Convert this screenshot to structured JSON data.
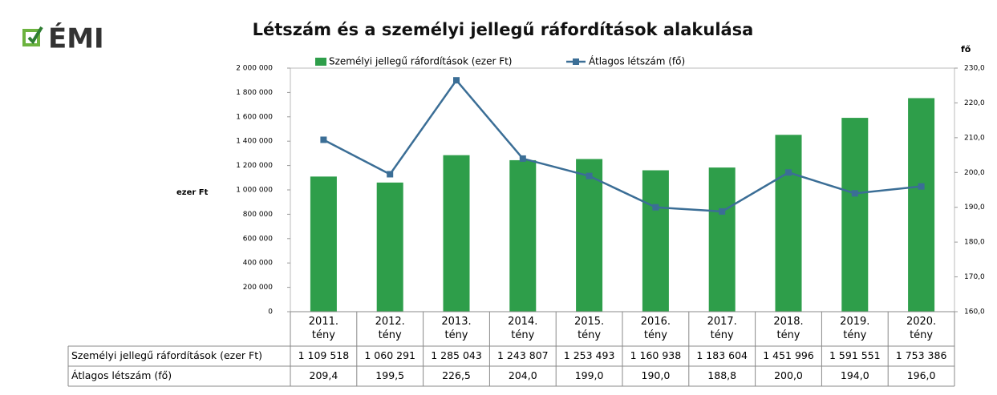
{
  "logo": "ÉMI",
  "chart_data": {
    "type": "bar-line",
    "title": "Létszám és a személyi jellegű ráfordítások alakulása",
    "y_label": "ezer Ft",
    "y2_label": "fő",
    "categories": [
      "2011. tény",
      "2012. tény",
      "2013. tény",
      "2014. tény",
      "2015. tény",
      "2016. tény",
      "2017. tény",
      "2018. tény",
      "2019. tény",
      "2020. tény"
    ],
    "series": [
      {
        "name": "Személyi jellegű ráfordítások (ezer Ft)",
        "type": "bar",
        "color": "#2e9e4a",
        "values": [
          1109518,
          1060291,
          1285043,
          1243807,
          1253493,
          1160938,
          1183604,
          1451996,
          1591551,
          1753386
        ],
        "value_labels": [
          "1 109 518",
          "1 060 291",
          "1 285 043",
          "1 243 807",
          "1 253 493",
          "1 160 938",
          "1 183 604",
          "1 451 996",
          "1 591 551",
          "1 753 386"
        ]
      },
      {
        "name": "Átlagos létszám (fő)",
        "type": "line",
        "axis": "y2",
        "color": "#3b6e96",
        "values": [
          209.4,
          199.5,
          226.5,
          204.0,
          199.0,
          190.0,
          188.8,
          200.0,
          194.0,
          196.0
        ],
        "value_labels": [
          "209,4",
          "199,5",
          "226,5",
          "204,0",
          "199,0",
          "190,0",
          "188,8",
          "200,0",
          "194,0",
          "196,0"
        ]
      }
    ],
    "ylim": [
      0,
      2000000
    ],
    "yticks": [
      0,
      {
        "value": 200000,
        "label": "200 000"
      },
      {
        "value": 400000,
        "label": "400 000"
      },
      {
        "value": 600000,
        "label": "600 000"
      },
      {
        "value": 800000,
        "label": "800 000"
      },
      {
        "value": 1000000,
        "label": "1 000 000"
      },
      {
        "value": 1200000,
        "label": "1 200 000"
      },
      {
        "value": 1400000,
        "label": "1 400 000"
      },
      {
        "value": 1600000,
        "label": "1 600 000"
      },
      {
        "value": 1800000,
        "label": "1 800 000"
      },
      {
        "value": 2000000,
        "label": "2 000 000"
      }
    ],
    "y2lim": [
      160,
      230
    ],
    "y2ticks": [
      {
        "value": 160,
        "label": "160,0"
      },
      {
        "value": 170,
        "label": "170,0"
      },
      {
        "value": 180,
        "label": "180,0"
      },
      {
        "value": 190,
        "label": "190,0"
      },
      {
        "value": 200,
        "label": "200,0"
      },
      {
        "value": 210,
        "label": "210,0"
      },
      {
        "value": 220,
        "label": "220,0"
      },
      {
        "value": 230,
        "label": "230,0"
      }
    ],
    "grid": false,
    "legend": "top"
  }
}
